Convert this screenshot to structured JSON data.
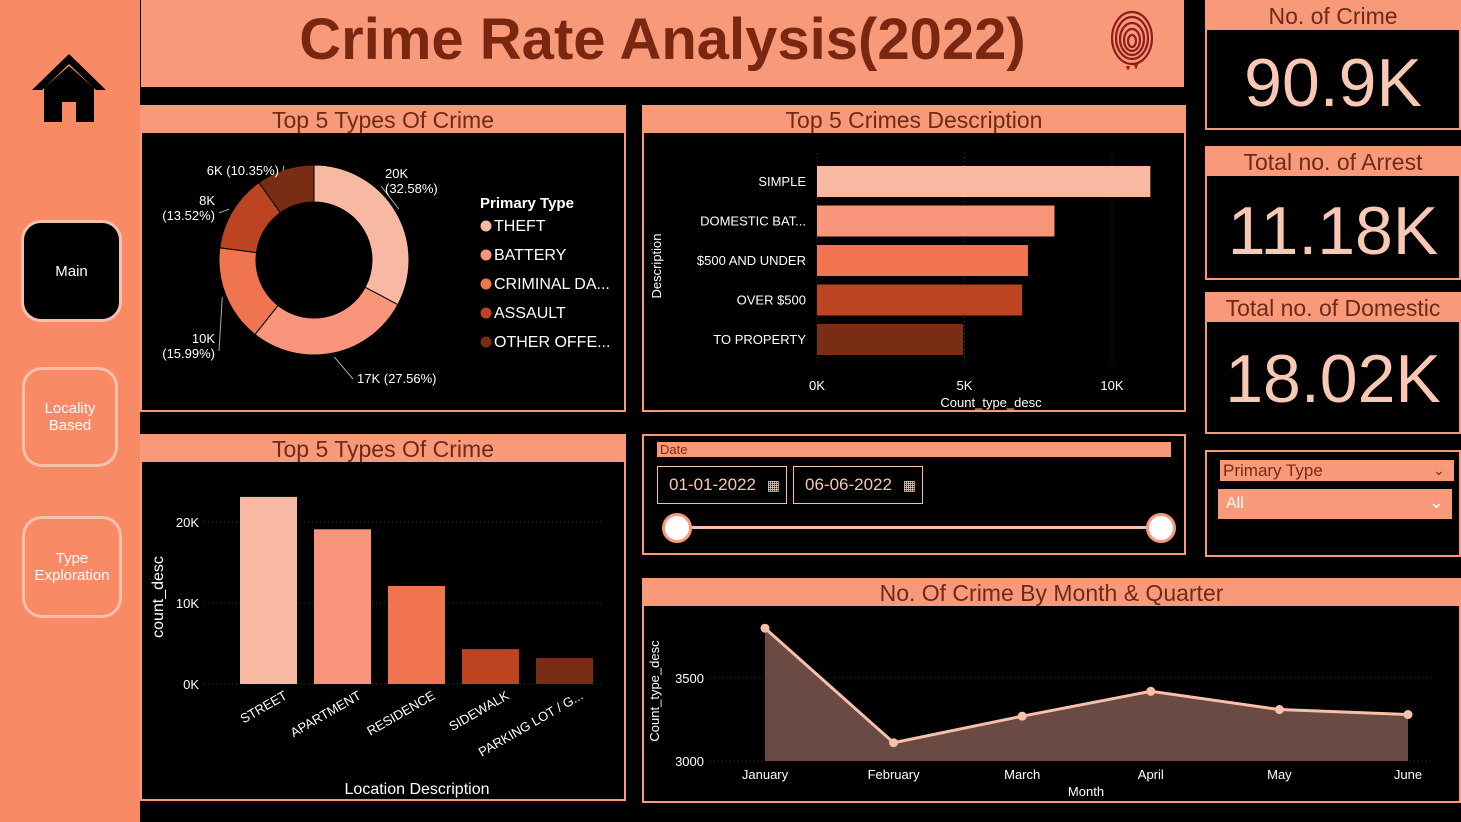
{
  "title": "Crime Rate Analysis(2022)",
  "nav": {
    "main": "Main",
    "locality": "Locality Based",
    "type": "Type Exploration"
  },
  "kpis": [
    {
      "label": "No. of Crime",
      "value": "90.9K"
    },
    {
      "label": "Total no. of Arrest",
      "value": "11.18K"
    },
    {
      "label": "Total no. of Domestic",
      "value": "18.02K"
    }
  ],
  "date_filter": {
    "label": "Date",
    "start": "01-01-2022",
    "end": "06-06-2022"
  },
  "type_filter": {
    "label": "Primary Type",
    "value": "All"
  },
  "colors": {
    "accent": "#F89A7A",
    "dark_accent": "#7A2712",
    "light": "#F4B8A4"
  },
  "chart_data": [
    {
      "type": "pie",
      "title": "Top 5 Types Of Crime",
      "legend_title": "Primary Type",
      "legend_position": "right",
      "slices": [
        {
          "name": "THEFT",
          "value": 20000,
          "label": "20K",
          "pct": "(32.58%)",
          "color": "#F8B9A3"
        },
        {
          "name": "BATTERY",
          "value": 17000,
          "label": "17K (27.56%)",
          "pct": "",
          "color": "#F8957A"
        },
        {
          "name": "CRIMINAL DA...",
          "value": 10000,
          "label": "10K",
          "pct": "(15.99%)",
          "color": "#F07450"
        },
        {
          "name": "ASSAULT",
          "value": 8000,
          "label": "8K",
          "pct": "(13.52%)",
          "color": "#BD4421"
        },
        {
          "name": "OTHER OFFE...",
          "value": 6000,
          "label": "6K (10.35%)",
          "pct": "",
          "color": "#7A2D15"
        }
      ]
    },
    {
      "type": "bar",
      "title": "Top 5 Crimes Description",
      "orientation": "horizontal",
      "xlabel": "Count_type_desc",
      "ylabel": "Description",
      "xlim": [
        0,
        12000
      ],
      "xticks": [
        "0K",
        "5K",
        "10K"
      ],
      "categories": [
        "SIMPLE",
        "DOMESTIC BAT...",
        "$500 AND UNDER",
        "OVER $500",
        "TO PROPERTY"
      ],
      "values": [
        11300,
        8050,
        7150,
        6950,
        4950
      ],
      "colors": [
        "#F8B9A3",
        "#F8957A",
        "#F07450",
        "#BD4421",
        "#7A2D15"
      ]
    },
    {
      "type": "bar",
      "title": "Top 5 Types Of Crime",
      "xlabel": "Location Description",
      "ylabel": "count_desc",
      "ylim": [
        0,
        25000
      ],
      "yticks": [
        "0K",
        "10K",
        "20K"
      ],
      "categories": [
        "STREET",
        "APARTMENT",
        "RESIDENCE",
        "SIDEWALK",
        "PARKING LOT / G..."
      ],
      "values": [
        23100,
        19100,
        12100,
        4300,
        3200
      ],
      "colors": [
        "#F8B9A3",
        "#F8957A",
        "#F07450",
        "#BD4421",
        "#7A2D15"
      ]
    },
    {
      "type": "area",
      "title": "No. Of Crime By Month & Quarter",
      "xlabel": "Month",
      "ylabel": "Count_type_desc",
      "ylim": [
        3000,
        3800
      ],
      "yticks": [
        "3000",
        "3500"
      ],
      "categories": [
        "January",
        "February",
        "March",
        "April",
        "May",
        "June"
      ],
      "values": [
        3800,
        3110,
        3270,
        3420,
        3310,
        3280
      ]
    }
  ]
}
